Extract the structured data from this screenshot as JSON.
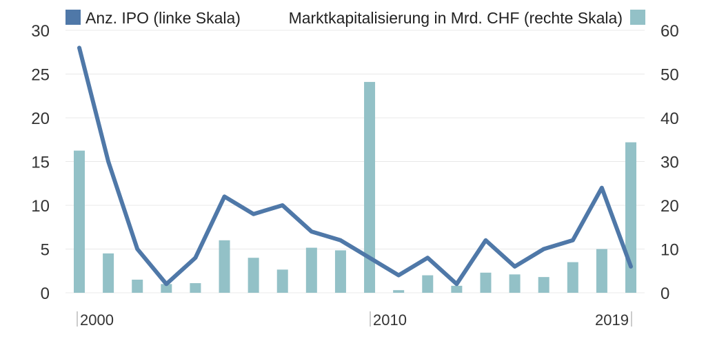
{
  "legend": {
    "line_label": "Anz. IPO (linke Skala)",
    "bar_label": "Marktkapitalisierung in Mrd. CHF (rechte Skala)"
  },
  "colors": {
    "line": "#4f78a8",
    "bar": "#93c1c7",
    "grid": "#e8e8e8",
    "text": "#333333"
  },
  "chart_data": {
    "type": "bar+line",
    "title": "",
    "x": [
      2000,
      2001,
      2002,
      2003,
      2004,
      2005,
      2006,
      2007,
      2008,
      2009,
      2010,
      2011,
      2012,
      2013,
      2014,
      2015,
      2016,
      2017,
      2018,
      2019
    ],
    "x_tick_labels": [
      "2000",
      "2010",
      "2019"
    ],
    "series": [
      {
        "name": "Anz. IPO (linke Skala)",
        "type": "line",
        "axis": "left",
        "values": [
          28,
          15,
          5,
          1,
          4,
          11,
          9,
          10,
          7,
          6,
          4,
          2,
          4,
          1,
          6,
          3,
          5,
          6,
          12,
          3
        ]
      },
      {
        "name": "Marktkapitalisierung in Mrd. CHF (rechte Skala)",
        "type": "bar",
        "axis": "right",
        "values": [
          32.5,
          9,
          3,
          2,
          2.2,
          12,
          8,
          5.3,
          10.3,
          9.7,
          48.2,
          0.6,
          4,
          1.6,
          4.6,
          4.2,
          3.6,
          7,
          10,
          34.4
        ]
      }
    ],
    "left_axis": {
      "ticks": [
        "0",
        "5",
        "10",
        "15",
        "20",
        "25",
        "30"
      ],
      "ylim": [
        0,
        30
      ]
    },
    "right_axis": {
      "ticks": [
        "0",
        "10",
        "20",
        "30",
        "40",
        "50",
        "60"
      ],
      "ylim": [
        0,
        60
      ]
    },
    "grid": true,
    "legend_position": "top"
  }
}
